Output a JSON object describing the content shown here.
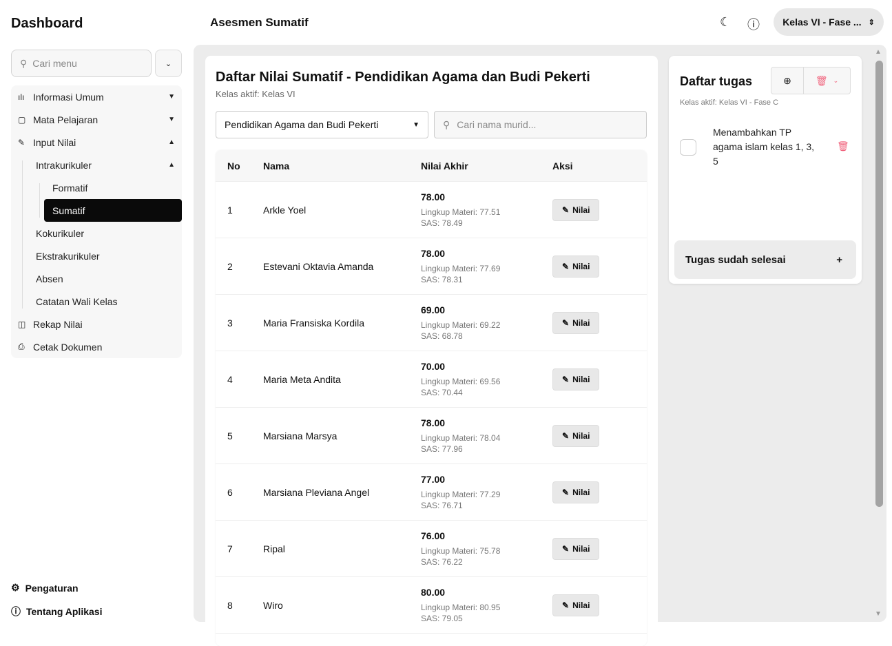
{
  "sidebar": {
    "title": "Dashboard",
    "search_placeholder": "Cari menu",
    "items": [
      {
        "label": "Informasi Umum",
        "icon": "bar-chart-icon"
      },
      {
        "label": "Mata Pelajaran",
        "icon": "book-icon"
      },
      {
        "label": "Input Nilai",
        "icon": "pen-icon"
      },
      {
        "label": "Intrakurikuler"
      },
      {
        "label": "Formatif"
      },
      {
        "label": "Sumatif"
      },
      {
        "label": "Kokurikuler"
      },
      {
        "label": "Ekstrakurikuler"
      },
      {
        "label": "Absen"
      },
      {
        "label": "Catatan Wali Kelas"
      },
      {
        "label": "Rekap Nilai",
        "icon": "table-icon"
      },
      {
        "label": "Cetak Dokumen",
        "icon": "printer-icon"
      }
    ],
    "footer": [
      "Pengaturan",
      "Tentang Aplikasi"
    ]
  },
  "header": {
    "title": "Asesmen Sumatif",
    "class_selector": "Kelas VI - Fase ..."
  },
  "main": {
    "title": "Daftar Nilai Sumatif - Pendidikan Agama dan Budi Pekerti",
    "subtitle": "Kelas aktif: Kelas VI",
    "subject_select": "Pendidikan Agama dan Budi Pekerti",
    "search_placeholder": "Cari nama murid...",
    "columns": [
      "No",
      "Nama",
      "Nilai Akhir",
      "Aksi"
    ],
    "action_label": "Nilai",
    "rows": [
      {
        "no": "1",
        "name": "Arkle Yoel",
        "final": "78.00",
        "lm": "Lingkup Materi: 77.51",
        "sas": "SAS: 78.49"
      },
      {
        "no": "2",
        "name": "Estevani Oktavia Amanda",
        "final": "78.00",
        "lm": "Lingkup Materi: 77.69",
        "sas": "SAS: 78.31"
      },
      {
        "no": "3",
        "name": "Maria Fransiska Kordila",
        "final": "69.00",
        "lm": "Lingkup Materi: 69.22",
        "sas": "SAS: 68.78"
      },
      {
        "no": "4",
        "name": "Maria Meta Andita",
        "final": "70.00",
        "lm": "Lingkup Materi: 69.56",
        "sas": "SAS: 70.44"
      },
      {
        "no": "5",
        "name": "Marsiana Marsya",
        "final": "78.00",
        "lm": "Lingkup Materi: 78.04",
        "sas": "SAS: 77.96"
      },
      {
        "no": "6",
        "name": "Marsiana Pleviana Angel",
        "final": "77.00",
        "lm": "Lingkup Materi: 77.29",
        "sas": "SAS: 76.71"
      },
      {
        "no": "7",
        "name": "Ripal",
        "final": "76.00",
        "lm": "Lingkup Materi: 75.78",
        "sas": "SAS: 76.22"
      },
      {
        "no": "8",
        "name": "Wiro",
        "final": "80.00",
        "lm": "Lingkup Materi: 80.95",
        "sas": "SAS: 79.05"
      }
    ]
  },
  "tasks": {
    "title": "Daftar tugas",
    "subtitle": "Kelas aktif: Kelas VI - Fase C",
    "items": [
      {
        "text": "Menambahkan TP agama islam kelas 1, 3, 5",
        "done": false
      }
    ],
    "completed_label": "Tugas sudah selesai"
  },
  "colors": {
    "active": "#0a0a0a",
    "danger": "#f0607a"
  }
}
